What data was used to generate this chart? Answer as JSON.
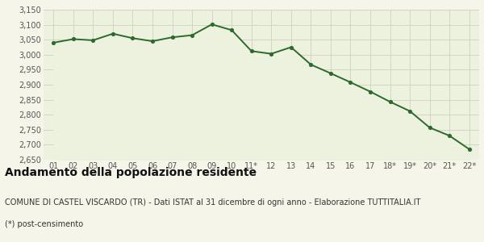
{
  "x_labels": [
    "01",
    "02",
    "03",
    "04",
    "05",
    "06",
    "07",
    "08",
    "09",
    "10",
    "11*",
    "12",
    "13",
    "14",
    "15",
    "16",
    "17",
    "18*",
    "19*",
    "20*",
    "21*",
    "22*"
  ],
  "y_values": [
    3040,
    3052,
    3048,
    3070,
    3055,
    3045,
    3058,
    3065,
    3101,
    3082,
    3012,
    3003,
    3025,
    2967,
    2938,
    2908,
    2877,
    2843,
    2812,
    2757,
    2730,
    2685
  ],
  "line_color": "#2d6a2d",
  "fill_color": "#edf2df",
  "marker_color": "#2d6a2d",
  "background_color": "#f5f5ea",
  "grid_color": "#d0d0c0",
  "ylim_min": 2650,
  "ylim_max": 3150,
  "yticks": [
    2650,
    2700,
    2750,
    2800,
    2850,
    2900,
    2950,
    3000,
    3050,
    3100,
    3150
  ],
  "title": "Andamento della popolazione residente",
  "subtitle": "COMUNE DI CASTEL VISCARDO (TR) - Dati ISTAT al 31 dicembre di ogni anno - Elaborazione TUTTITALIA.IT",
  "footnote": "(*) post-censimento",
  "title_fontsize": 10,
  "subtitle_fontsize": 7,
  "footnote_fontsize": 7,
  "tick_fontsize": 7,
  "axis_label_color": "#555555"
}
